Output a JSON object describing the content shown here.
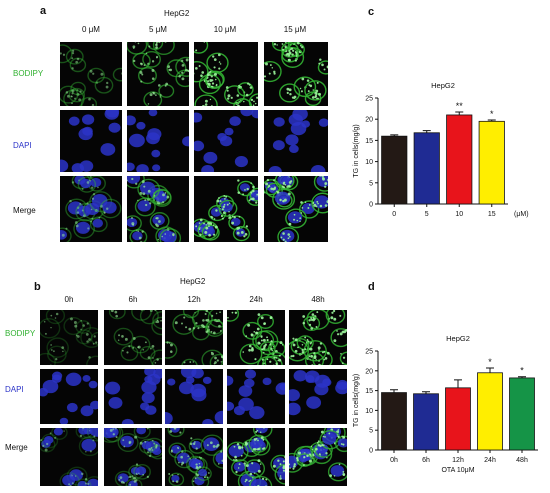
{
  "panel_a": {
    "letter": "a",
    "title": "HepG2",
    "columns": [
      "0 μM",
      "5 μM",
      "10 μM",
      "15 μM"
    ],
    "rows": [
      "BODIPY",
      "DAPI",
      "Merge"
    ]
  },
  "panel_b": {
    "letter": "b",
    "title": "HepG2",
    "columns": [
      "0h",
      "6h",
      "12h",
      "24h",
      "48h"
    ],
    "rows": [
      "BODIPY",
      "DAPI",
      "Merge"
    ]
  },
  "panel_c": {
    "letter": "c"
  },
  "panel_d": {
    "letter": "d"
  },
  "colors": {
    "bodipy": "#33b233",
    "dapi": "#2c34c8"
  },
  "chart_data": [
    {
      "type": "bar",
      "title": "HepG2",
      "ylabel": "TG in cells(mg/g)",
      "xlabel": "",
      "unit_label": "(μM)",
      "categories": [
        "0",
        "5",
        "10",
        "15"
      ],
      "values": [
        16,
        16.8,
        21,
        19.5
      ],
      "errors": [
        0.3,
        0.5,
        0.7,
        0.3
      ],
      "significance": [
        "",
        "",
        "**",
        "*"
      ],
      "colors": [
        "#231915",
        "#1f2b93",
        "#e8141b",
        "#ffee00"
      ],
      "ylim": [
        0,
        25
      ],
      "yticks": [
        "0",
        "5",
        "10",
        "15",
        "20",
        "25"
      ],
      "grid": false
    },
    {
      "type": "bar",
      "title": "HepG2",
      "ylabel": "TG in cells(mg/g)",
      "xlabel": "OTA 10μM",
      "categories": [
        "0h",
        "6h",
        "12h",
        "24h",
        "48h"
      ],
      "values": [
        14.5,
        14.2,
        15.7,
        19.5,
        18.2
      ],
      "errors": [
        0.7,
        0.5,
        2.0,
        1.2,
        0.3
      ],
      "significance": [
        "",
        "",
        "",
        "*",
        "*"
      ],
      "colors": [
        "#231915",
        "#1f2b93",
        "#e8141b",
        "#ffee00",
        "#159447"
      ],
      "ylim": [
        0,
        25
      ],
      "yticks": [
        "0",
        "5",
        "10",
        "15",
        "20",
        "25"
      ],
      "grid": false
    }
  ]
}
